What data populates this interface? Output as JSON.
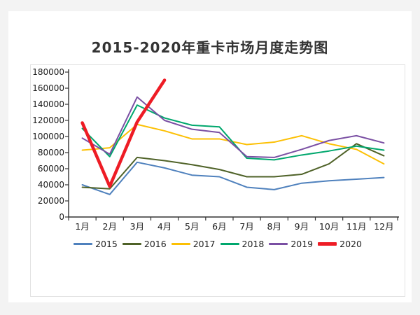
{
  "chart_data": {
    "type": "line",
    "title": "2015-2020年重卡市场月度走势图",
    "xlabel": "",
    "ylabel": "",
    "categories": [
      "1月",
      "2月",
      "3月",
      "4月",
      "5月",
      "6月",
      "7月",
      "8月",
      "9月",
      "10月",
      "11月",
      "12月"
    ],
    "series": [
      {
        "name": "2015",
        "color": "#4f81bd",
        "line_width": 2,
        "values": [
          40000,
          28000,
          68000,
          61000,
          52000,
          50000,
          37000,
          34000,
          42000,
          45000,
          47000,
          49000
        ]
      },
      {
        "name": "2016",
        "color": "#4f6228",
        "line_width": 2,
        "values": [
          37000,
          35000,
          74000,
          70000,
          65000,
          59000,
          50000,
          50000,
          53000,
          66000,
          91000,
          76000
        ]
      },
      {
        "name": "2017",
        "color": "#fcc004",
        "line_width": 2,
        "values": [
          83000,
          86000,
          115000,
          107000,
          97000,
          97000,
          90000,
          93000,
          101000,
          91000,
          84000,
          66000
        ]
      },
      {
        "name": "2018",
        "color": "#00a76d",
        "line_width": 2,
        "values": [
          110000,
          75000,
          139000,
          123000,
          114000,
          112000,
          73000,
          71000,
          77000,
          82000,
          88000,
          83000
        ]
      },
      {
        "name": "2019",
        "color": "#7a4fa3",
        "line_width": 2,
        "values": [
          98000,
          78000,
          149000,
          120000,
          109000,
          105000,
          75000,
          74000,
          84000,
          95000,
          101000,
          92000
        ]
      },
      {
        "name": "2020",
        "color": "#ee1c25",
        "line_width": 4.5,
        "values": [
          117000,
          38000,
          118000,
          170000
        ]
      }
    ],
    "ylim": [
      0,
      180000
    ],
    "ytick_step": 20000,
    "ytick_labels": [
      "0",
      "20000",
      "40000",
      "60000",
      "80000",
      "100000",
      "120000",
      "140000",
      "160000",
      "180000"
    ],
    "grid": "off",
    "legend_position": "bottom",
    "axis_color": "#333333"
  }
}
